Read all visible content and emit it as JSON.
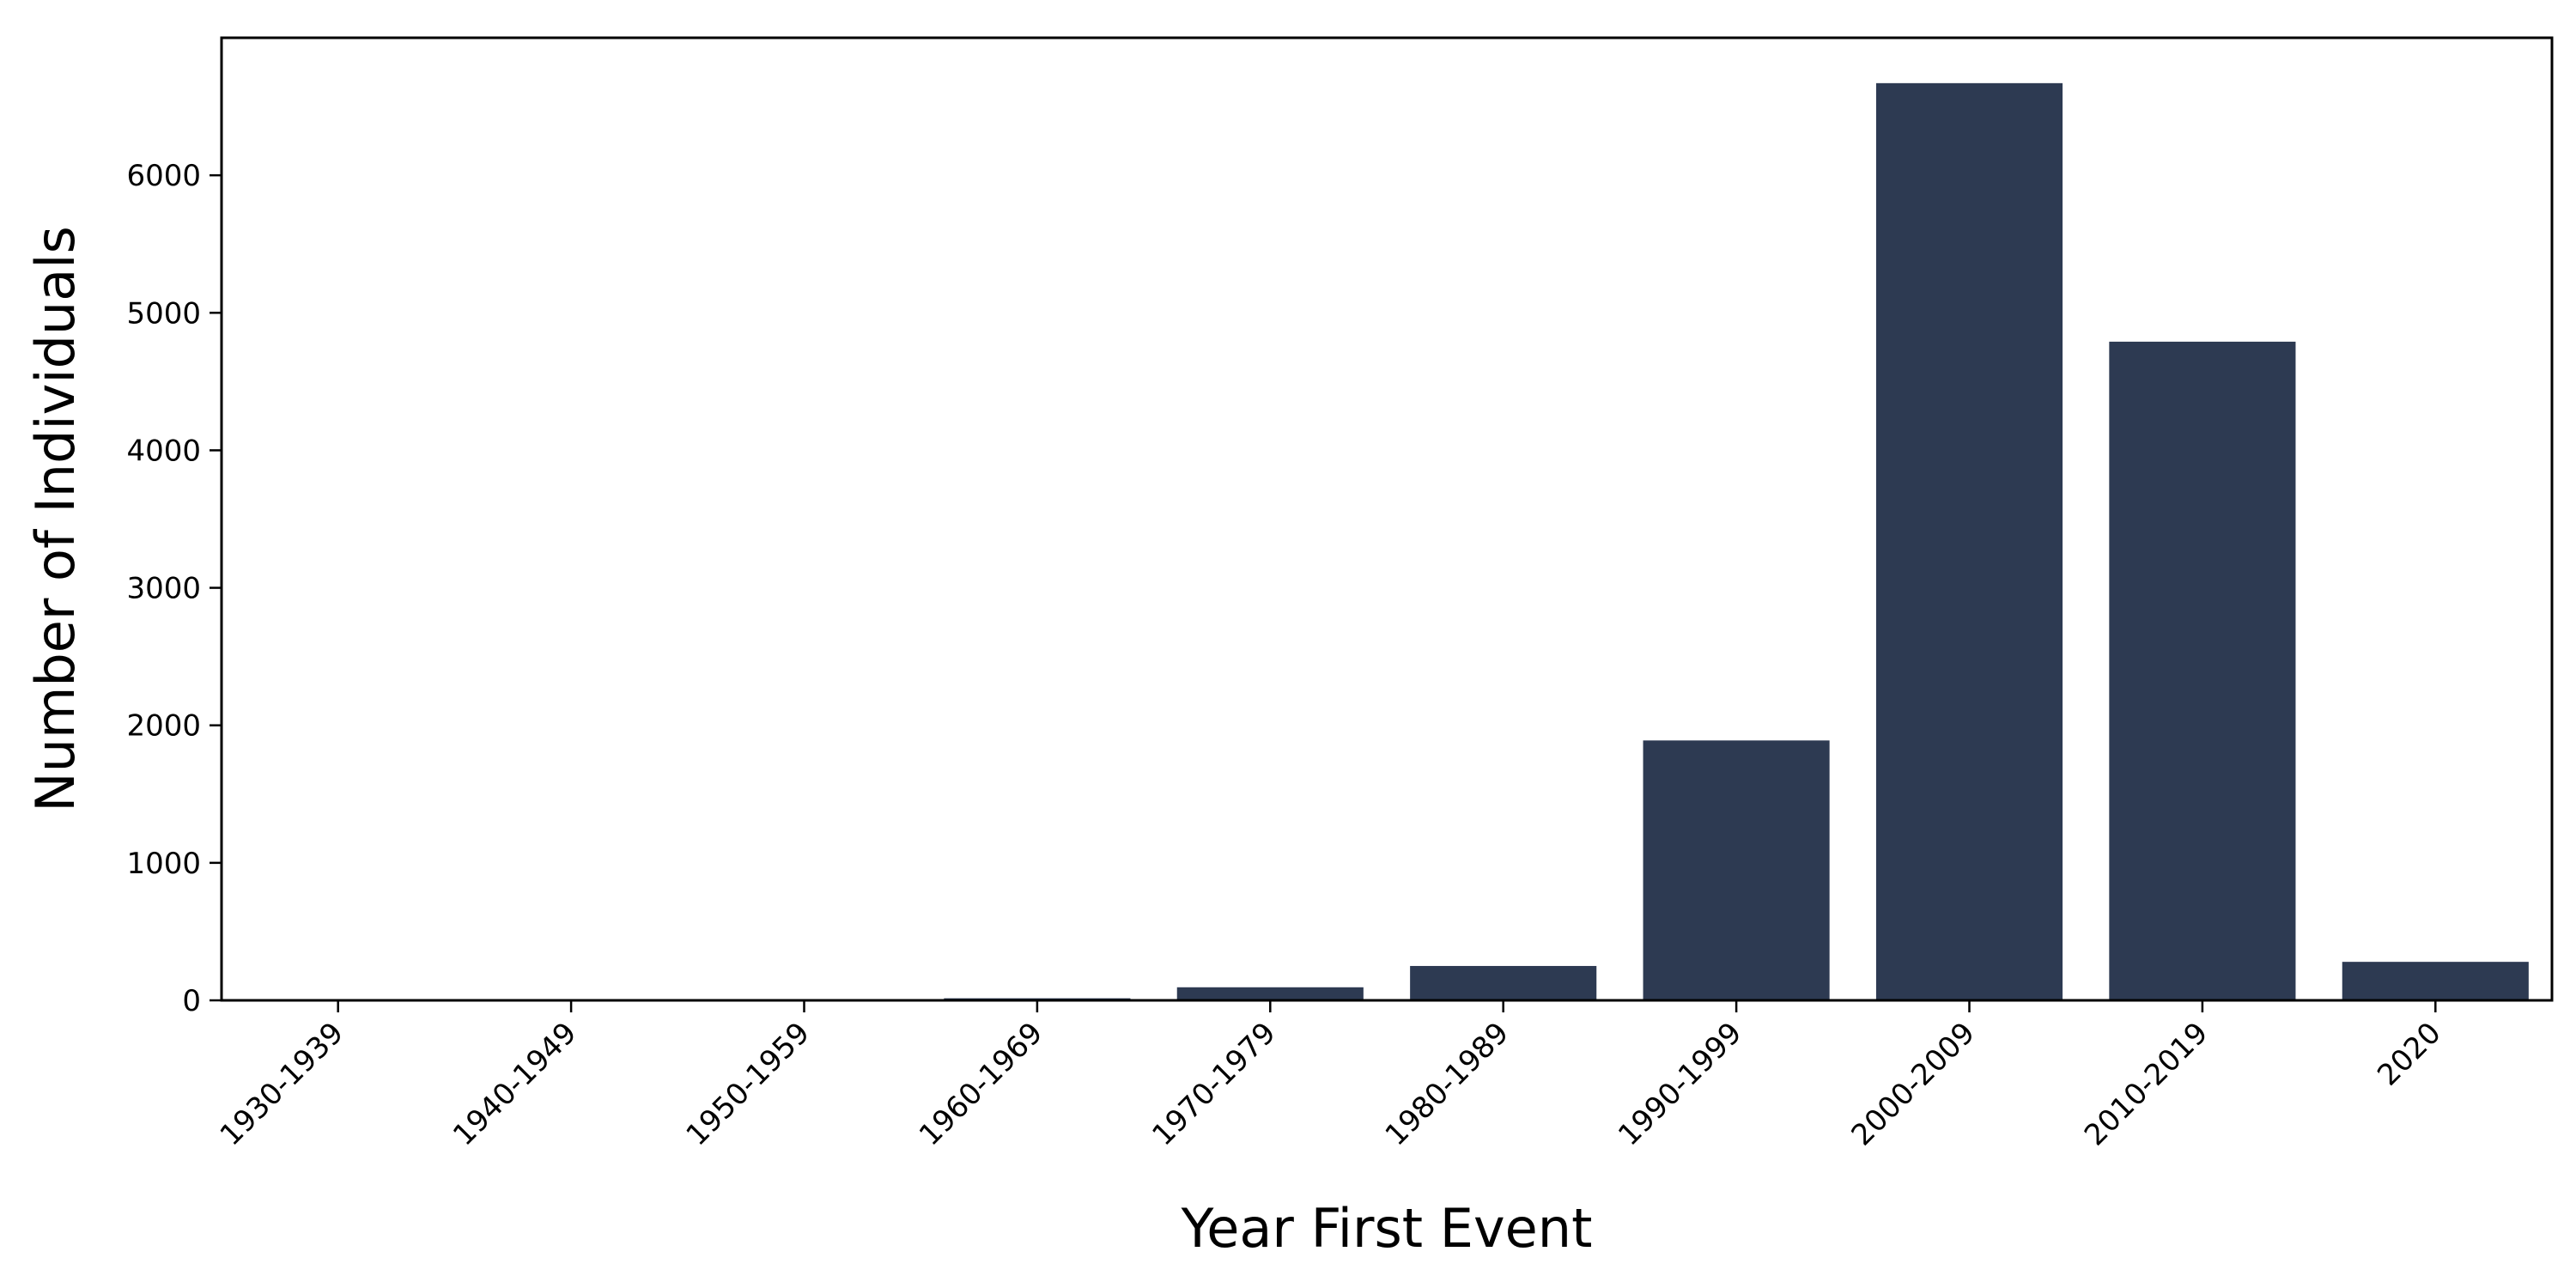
{
  "chart_data": {
    "type": "bar",
    "title": "",
    "xlabel": "Year First Event",
    "ylabel": "Number of Individuals",
    "categories": [
      "1930-1939",
      "1940-1949",
      "1950-1959",
      "1960-1969",
      "1970-1979",
      "1980-1989",
      "1990-1999",
      "2000-2009",
      "2010-2019",
      "2020"
    ],
    "values": [
      1,
      2,
      3,
      15,
      95,
      250,
      1890,
      6670,
      4790,
      280
    ],
    "ylim": [
      0,
      7000
    ],
    "yticks": [
      0,
      1000,
      2000,
      3000,
      4000,
      5000,
      6000
    ],
    "grid": false,
    "legend": "none",
    "bar_color": "#2d3a52"
  }
}
